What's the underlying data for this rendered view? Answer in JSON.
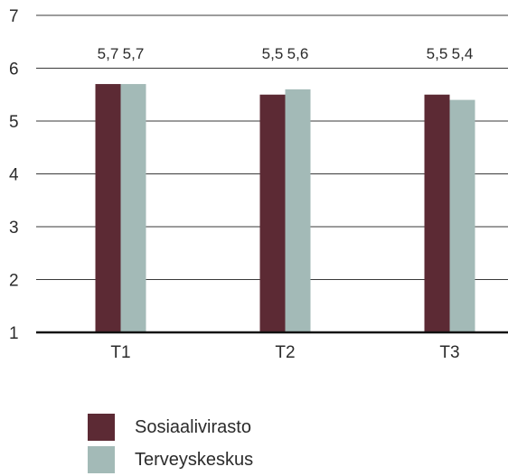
{
  "chart_data": {
    "type": "bar",
    "categories": [
      "T1",
      "T2",
      "T3"
    ],
    "series": [
      {
        "name": "Sosiaalivirasto",
        "values": [
          5.7,
          5.5,
          5.5
        ],
        "labels": [
          "5,7",
          "5,5",
          "5,5"
        ],
        "color": "#5c2a34"
      },
      {
        "name": "Terveyskeskus",
        "values": [
          5.7,
          5.6,
          5.4
        ],
        "labels": [
          "5,7",
          "5,6",
          "5,4"
        ],
        "color": "#a3bab7"
      }
    ],
    "ylim": [
      1,
      7
    ],
    "yticks": [
      "1",
      "2",
      "3",
      "4",
      "5",
      "6",
      "7"
    ],
    "grid": true,
    "legend_position": "bottom-left"
  }
}
